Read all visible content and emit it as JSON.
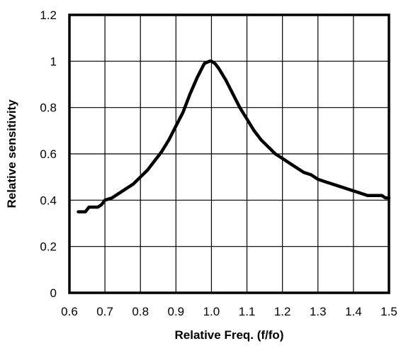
{
  "chart_data": {
    "type": "line",
    "title": "",
    "xlabel": "Relative Freq. (f/fo)",
    "ylabel": "Relative sensitivity",
    "xlim": [
      0.6,
      1.5
    ],
    "ylim": [
      0,
      1.2
    ],
    "x_ticks": [
      0.6,
      0.7,
      0.8,
      0.9,
      1.0,
      1.1,
      1.2,
      1.3,
      1.4,
      1.5
    ],
    "x_tick_labels": [
      "0.6",
      "0.7",
      "0.8",
      "0.9",
      "1.0",
      "1.1",
      "1.2",
      "1.3",
      "1.4",
      "1.5"
    ],
    "y_ticks": [
      0,
      0.2,
      0.4,
      0.6,
      0.8,
      1,
      1.2
    ],
    "y_tick_labels": [
      "0",
      "0.2",
      "0.4",
      "0.6",
      "0.8",
      "1",
      "1.2"
    ],
    "grid": true,
    "legend": "none",
    "line_color": "#000000",
    "series": [
      {
        "x": [
          0.625,
          0.645,
          0.65,
          0.655,
          0.66,
          0.68,
          0.69,
          0.7,
          0.72,
          0.74,
          0.76,
          0.78,
          0.8,
          0.82,
          0.84,
          0.86,
          0.88,
          0.9,
          0.92,
          0.94,
          0.96,
          0.98,
          0.995,
          1.0,
          1.01,
          1.02,
          1.04,
          1.06,
          1.08,
          1.1,
          1.12,
          1.14,
          1.16,
          1.18,
          1.2,
          1.22,
          1.24,
          1.26,
          1.28,
          1.3,
          1.32,
          1.34,
          1.36,
          1.38,
          1.4,
          1.42,
          1.44,
          1.46,
          1.48,
          1.49,
          1.5
        ],
        "y": [
          0.35,
          0.35,
          0.36,
          0.37,
          0.37,
          0.37,
          0.38,
          0.4,
          0.41,
          0.43,
          0.45,
          0.47,
          0.5,
          0.53,
          0.57,
          0.61,
          0.66,
          0.72,
          0.78,
          0.86,
          0.93,
          0.99,
          1.0,
          1.0,
          0.99,
          0.97,
          0.92,
          0.86,
          0.8,
          0.75,
          0.7,
          0.66,
          0.63,
          0.6,
          0.58,
          0.56,
          0.54,
          0.52,
          0.51,
          0.49,
          0.48,
          0.47,
          0.46,
          0.45,
          0.44,
          0.43,
          0.42,
          0.42,
          0.42,
          0.41,
          0.41
        ]
      }
    ]
  }
}
